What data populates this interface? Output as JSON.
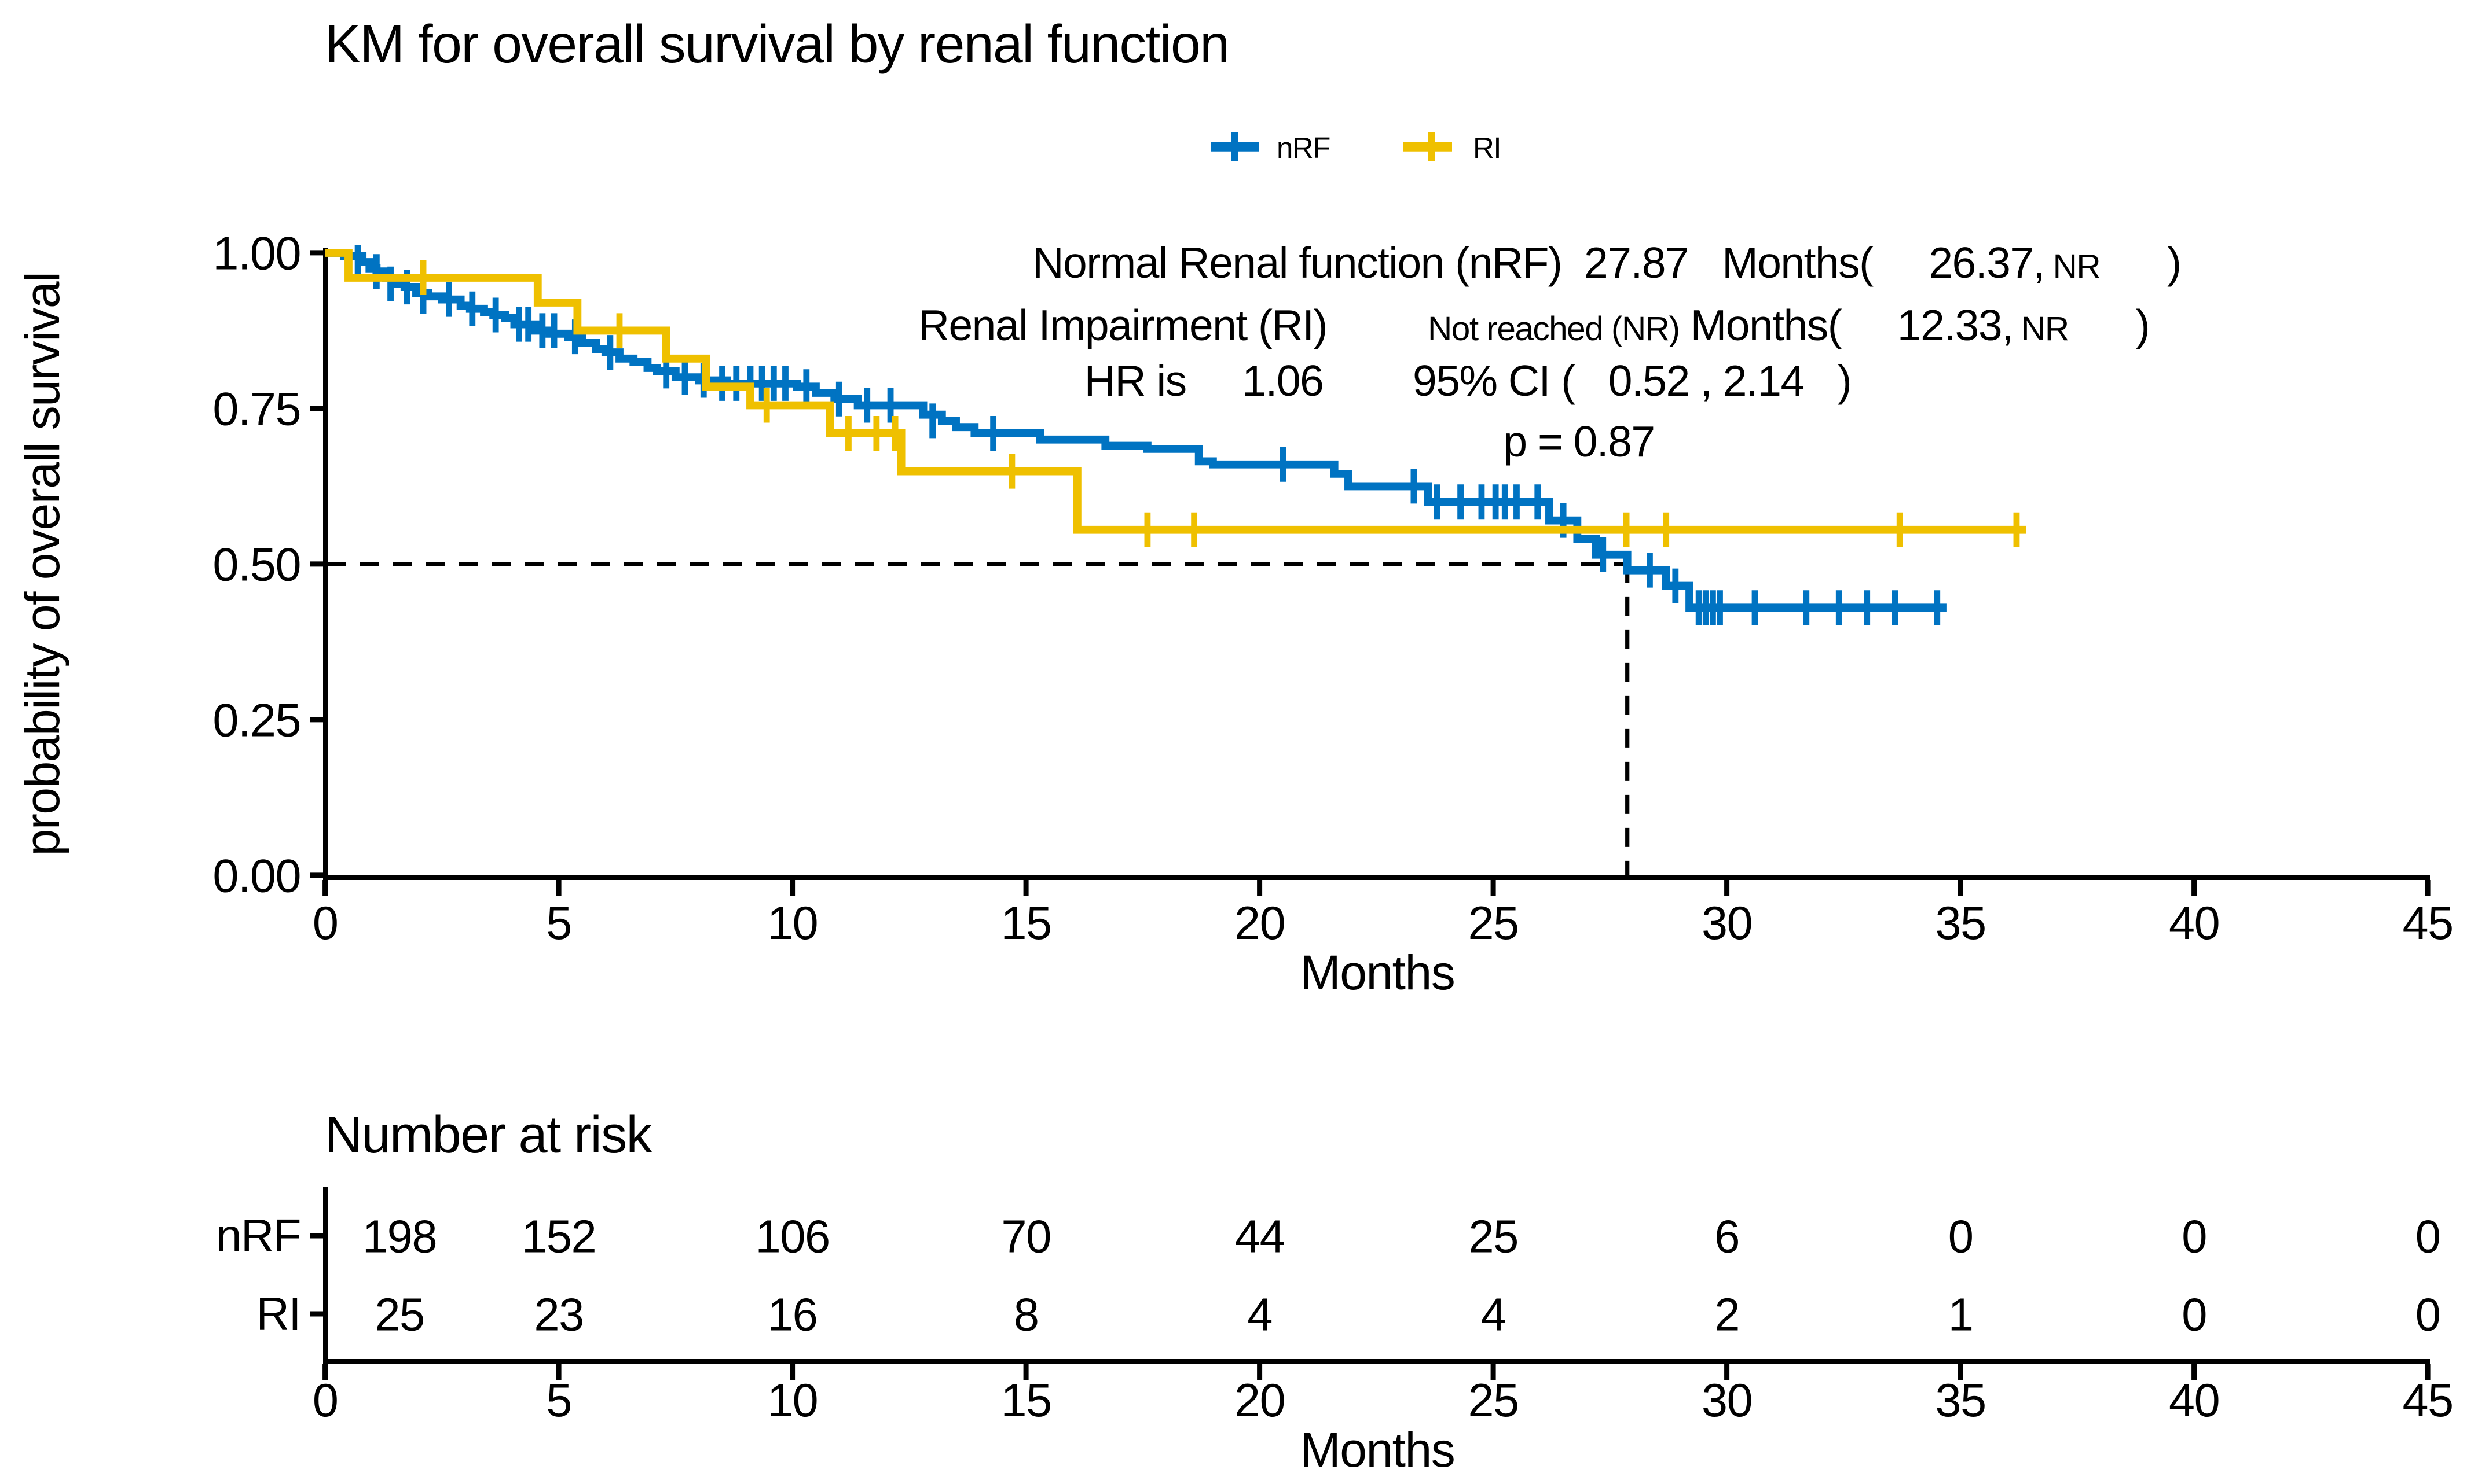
{
  "title": "KM for overall survival by renal function",
  "legend": {
    "items": [
      {
        "label": "nRF",
        "color": "#0073C2"
      },
      {
        "label": "RI",
        "color": "#EFC000"
      }
    ]
  },
  "annotations": {
    "lines": [
      {
        "x": 925,
        "y": 160,
        "segments": [
          {
            "text": "Normal Renal function (nRF)  27.87   Months(     26.37,",
            "small": false
          },
          {
            "text": " NR",
            "small": true
          },
          {
            "text": "      )",
            "small": false
          }
        ]
      },
      {
        "x": 883,
        "y": 196,
        "segments": [
          {
            "text": "Renal Impairment (RI)         ",
            "small": false
          },
          {
            "text": "Not reached (NR)",
            "small": true
          },
          {
            "text": " Months(     12.33,",
            "small": false
          },
          {
            "text": " NR",
            "small": true
          },
          {
            "text": "      )",
            "small": false
          }
        ]
      },
      {
        "x": 845,
        "y": 228,
        "segments": [
          {
            "text": "HR is     1.06        95% CI (   0.52 , 2.14   )",
            "small": false
          }
        ]
      },
      {
        "x": 909,
        "y": 263,
        "segments": [
          {
            "text": "p = 0.87",
            "small": false
          }
        ]
      }
    ]
  },
  "chart_data": {
    "type": "line",
    "subtype": "kaplan-meier-step",
    "title": "KM for overall survival by renal function",
    "xlabel": "Months",
    "ylabel": "probability of overall survival",
    "xlim": [
      0,
      45
    ],
    "ylim": [
      0,
      1
    ],
    "xticks": [
      0,
      5,
      10,
      15,
      20,
      25,
      30,
      35,
      40,
      45
    ],
    "yticks": [
      0,
      0.25,
      0.5,
      0.75,
      1
    ],
    "ytick_labels": [
      "0.00",
      "0.25",
      "0.50",
      "0.75",
      "1.00"
    ],
    "legend_position": "top-center",
    "grid": false,
    "median_guide": {
      "x": 27.87,
      "y": 0.5
    },
    "median_survival": {
      "nRF": {
        "months": "27.87",
        "ci_low": "26.37",
        "ci_high": "NR"
      },
      "RI": {
        "months": "Not reached (NR)",
        "ci_low": "12.33",
        "ci_high": "NR"
      }
    },
    "hazard_ratio": {
      "hr": "1.06",
      "ci_low": "0.52",
      "ci_high": "2.14",
      "p": "0.87"
    },
    "series": [
      {
        "name": "nRF",
        "color": "#0073C2",
        "end": 34.7,
        "steps": [
          [
            0,
            1.0
          ],
          [
            0.4,
            0.995
          ],
          [
            0.8,
            0.985
          ],
          [
            0.95,
            0.975
          ],
          [
            1.1,
            0.97
          ],
          [
            1.3,
            0.96
          ],
          [
            1.5,
            0.95
          ],
          [
            1.7,
            0.945
          ],
          [
            1.95,
            0.935
          ],
          [
            2.2,
            0.93
          ],
          [
            2.5,
            0.925
          ],
          [
            2.9,
            0.915
          ],
          [
            3.1,
            0.91
          ],
          [
            3.4,
            0.905
          ],
          [
            3.6,
            0.9
          ],
          [
            3.85,
            0.895
          ],
          [
            4.05,
            0.885
          ],
          [
            4.5,
            0.875
          ],
          [
            4.8,
            0.87
          ],
          [
            5.2,
            0.865
          ],
          [
            5.5,
            0.855
          ],
          [
            5.8,
            0.845
          ],
          [
            6.0,
            0.84
          ],
          [
            6.3,
            0.83
          ],
          [
            6.6,
            0.825
          ],
          [
            6.9,
            0.815
          ],
          [
            7.1,
            0.81
          ],
          [
            7.5,
            0.8
          ],
          [
            8.0,
            0.795
          ],
          [
            8.6,
            0.79
          ],
          [
            10.1,
            0.785
          ],
          [
            10.5,
            0.775
          ],
          [
            10.9,
            0.765
          ],
          [
            11.4,
            0.755
          ],
          [
            12.8,
            0.74
          ],
          [
            13.2,
            0.73
          ],
          [
            13.5,
            0.72
          ],
          [
            13.9,
            0.71
          ],
          [
            15.3,
            0.7
          ],
          [
            16.7,
            0.69
          ],
          [
            17.6,
            0.685
          ],
          [
            18.7,
            0.665
          ],
          [
            19.0,
            0.66
          ],
          [
            21.6,
            0.645
          ],
          [
            21.9,
            0.625
          ],
          [
            23.6,
            0.6
          ],
          [
            26.2,
            0.57
          ],
          [
            26.8,
            0.54
          ],
          [
            27.2,
            0.515
          ],
          [
            27.87,
            0.49
          ],
          [
            28.7,
            0.465
          ],
          [
            29.2,
            0.43
          ]
        ],
        "censors": [
          [
            0.7,
            0.985
          ],
          [
            1.1,
            0.97
          ],
          [
            1.4,
            0.95
          ],
          [
            1.75,
            0.945
          ],
          [
            2.1,
            0.93
          ],
          [
            2.65,
            0.925
          ],
          [
            3.15,
            0.91
          ],
          [
            3.65,
            0.9
          ],
          [
            4.15,
            0.885
          ],
          [
            4.35,
            0.885
          ],
          [
            4.65,
            0.875
          ],
          [
            4.9,
            0.875
          ],
          [
            5.35,
            0.865
          ],
          [
            6.1,
            0.84
          ],
          [
            7.3,
            0.81
          ],
          [
            7.7,
            0.8
          ],
          [
            8.1,
            0.795
          ],
          [
            8.5,
            0.79
          ],
          [
            8.8,
            0.79
          ],
          [
            9.1,
            0.79
          ],
          [
            9.35,
            0.79
          ],
          [
            9.6,
            0.79
          ],
          [
            9.85,
            0.79
          ],
          [
            10.3,
            0.785
          ],
          [
            11.0,
            0.765
          ],
          [
            11.6,
            0.755
          ],
          [
            12.1,
            0.755
          ],
          [
            13.0,
            0.73
          ],
          [
            14.3,
            0.71
          ],
          [
            20.5,
            0.66
          ],
          [
            23.3,
            0.625
          ],
          [
            23.8,
            0.6
          ],
          [
            24.3,
            0.6
          ],
          [
            24.75,
            0.6
          ],
          [
            25.05,
            0.6
          ],
          [
            25.25,
            0.6
          ],
          [
            25.5,
            0.6
          ],
          [
            25.95,
            0.6
          ],
          [
            26.5,
            0.57
          ],
          [
            27.35,
            0.515
          ],
          [
            28.35,
            0.49
          ],
          [
            28.9,
            0.465
          ],
          [
            29.4,
            0.43
          ],
          [
            29.55,
            0.43
          ],
          [
            29.7,
            0.43
          ],
          [
            29.85,
            0.43
          ],
          [
            30.6,
            0.43
          ],
          [
            31.7,
            0.43
          ],
          [
            32.4,
            0.43
          ],
          [
            33.0,
            0.43
          ],
          [
            33.6,
            0.43
          ],
          [
            34.5,
            0.43
          ]
        ]
      },
      {
        "name": "RI",
        "color": "#EFC000",
        "end": 36.4,
        "steps": [
          [
            0,
            1.0
          ],
          [
            0.5,
            0.96
          ],
          [
            4.55,
            0.92
          ],
          [
            5.4,
            0.875
          ],
          [
            7.3,
            0.83
          ],
          [
            8.15,
            0.785
          ],
          [
            9.1,
            0.755
          ],
          [
            10.8,
            0.71
          ],
          [
            12.33,
            0.649
          ],
          [
            16.1,
            0.555
          ]
        ],
        "censors": [
          [
            2.1,
            0.96
          ],
          [
            6.3,
            0.875
          ],
          [
            9.45,
            0.755
          ],
          [
            11.2,
            0.71
          ],
          [
            11.8,
            0.71
          ],
          [
            12.2,
            0.71
          ],
          [
            14.7,
            0.649
          ],
          [
            17.6,
            0.555
          ],
          [
            18.6,
            0.555
          ],
          [
            27.85,
            0.555
          ],
          [
            28.7,
            0.555
          ],
          [
            33.7,
            0.555
          ],
          [
            36.2,
            0.555
          ]
        ]
      }
    ]
  },
  "risk_table": {
    "title": "Number at risk",
    "months": [
      0,
      5,
      10,
      15,
      20,
      25,
      30,
      35,
      40,
      45
    ],
    "rows": [
      {
        "label": "nRF",
        "color": "#0073C2",
        "values": [
          "198",
          "152",
          "106",
          "70",
          "44",
          "25",
          "6",
          "0",
          "0",
          "0"
        ]
      },
      {
        "label": "RI",
        "color": "#EFC000",
        "values": [
          "25",
          "23",
          "16",
          "8",
          "4",
          "4",
          "2",
          "1",
          "0",
          "0"
        ]
      }
    ]
  }
}
